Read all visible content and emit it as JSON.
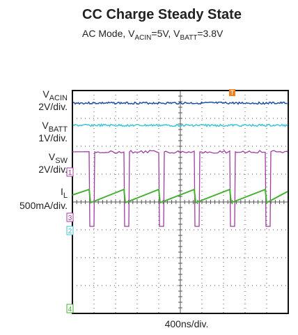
{
  "header": {
    "title": "CC Charge Steady State",
    "subtitle": [
      "AC Mode, V",
      "ACIN",
      "=5V, V",
      "BATT",
      "=3.8V"
    ]
  },
  "channels": [
    {
      "name": [
        "V",
        "ACIN"
      ],
      "scale": "2V/div."
    },
    {
      "name": [
        "V",
        "BATT"
      ],
      "scale": "1V/div."
    },
    {
      "name": [
        "V",
        "SW"
      ],
      "scale": "2V/div."
    },
    {
      "name": [
        "I",
        "L"
      ],
      "scale": "500mA/div."
    }
  ],
  "markers": [
    "1",
    "3",
    "2",
    "4"
  ],
  "trigger": "T",
  "timebase": "400ns/div."
}
